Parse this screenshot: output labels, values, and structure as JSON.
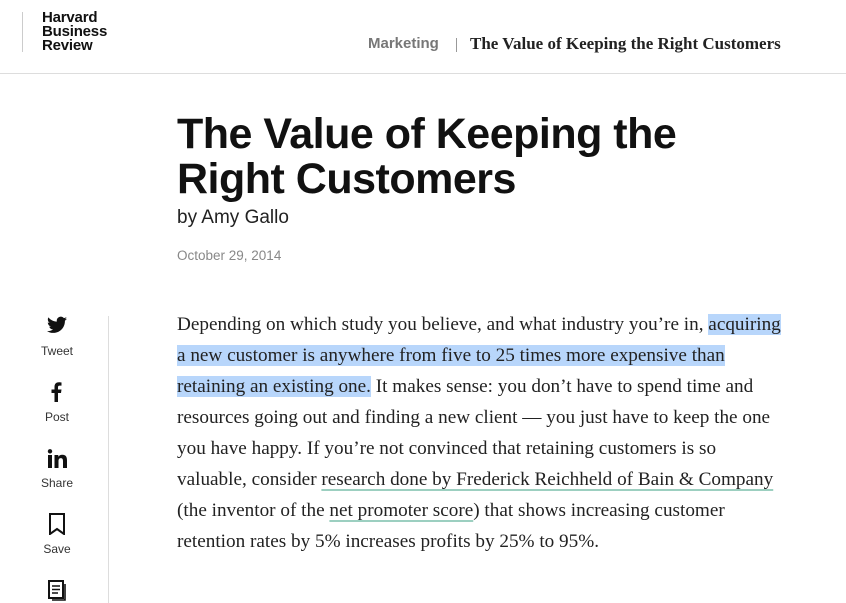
{
  "header": {
    "logo": [
      "Harvard",
      "Business",
      "Review"
    ],
    "breadcrumb": {
      "section": "Marketing",
      "title": "The Value of Keeping the Right Customers"
    }
  },
  "article": {
    "title_lines": [
      "The Value of Keeping the",
      "Right Customers"
    ],
    "byline": "by Amy Gallo",
    "date": "October 29, 2014",
    "body": [
      "Depending on which study you believe, and what industry you’re in, ",
      "acquiring a new customer is anywhere from five to 25 times more expensive than retaining an existing one.",
      " It makes sense: you don’t have to spend time and resources going out and finding a new client — you just have to keep the one you have happy. If you’re not convinced that retaining customers is so valuable, consider ",
      "research done by Frederick Reichheld of Bain & Company",
      " (the inventor of the ",
      "net promoter score",
      ") that shows increasing customer retention rates by 5% increases profits by 25% to 95%."
    ]
  },
  "share": [
    "Tweet",
    "Post",
    "Share",
    "Save"
  ]
}
